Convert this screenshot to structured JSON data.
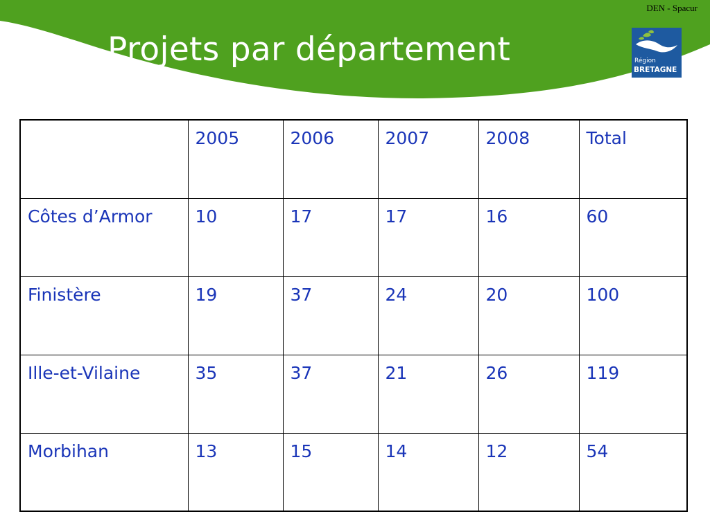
{
  "header": {
    "source_label": "DEN - Spacur",
    "title": "Projets par département"
  },
  "logo": {
    "name": "region-bretagne-logo",
    "line1": "Région",
    "line2": "BRETAGNE",
    "colors": {
      "background": "#1e5aa0",
      "leaf_green": "#8fc13e",
      "leaf_white": "#ffffff"
    }
  },
  "colors": {
    "banner_green": "#4fa11f",
    "text_blue": "#1a35b8"
  },
  "table": {
    "columns": [
      "",
      "2005",
      "2006",
      "2007",
      "2008",
      "Total"
    ],
    "rows": [
      [
        "Côtes d’Armor",
        "10",
        "17",
        "17",
        "16",
        "60"
      ],
      [
        "Finistère",
        "19",
        "37",
        "24",
        "20",
        "100"
      ],
      [
        "Ille-et-Vilaine",
        "35",
        "37",
        "21",
        "26",
        "119"
      ],
      [
        "Morbihan",
        "13",
        "15",
        "14",
        "12",
        "54"
      ]
    ]
  }
}
